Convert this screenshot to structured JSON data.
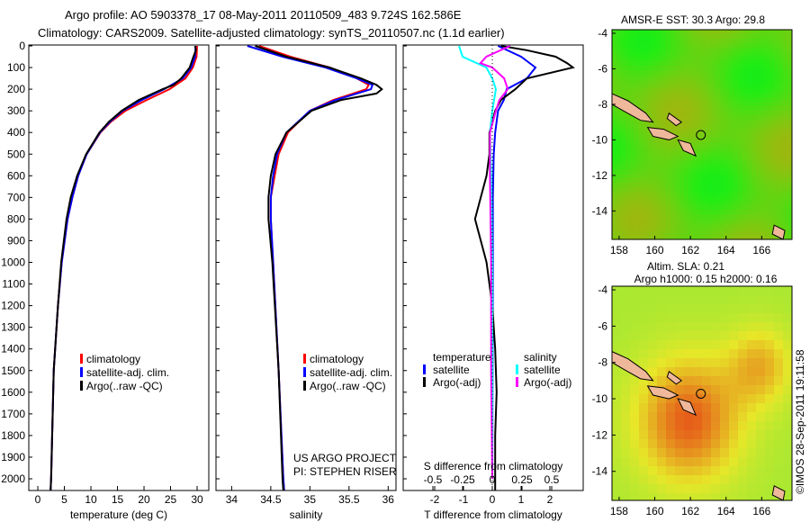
{
  "title": {
    "line1": "Argo profile: AO 5903378_17 08-May-2011 20110509_483 9.724S 162.586E",
    "line2": "Climatology: CARS2009. Satellite-adjusted climatology: synTS_20110507.nc (1.1d earlier)"
  },
  "colors": {
    "climatology": "#ff0000",
    "satellite": "#0000ff",
    "argo": "#000000",
    "sat_salt": "#00ffff",
    "argo_salt": "#ff00ff"
  },
  "depth_ticks": [
    0,
    100,
    200,
    300,
    400,
    500,
    600,
    700,
    800,
    900,
    1000,
    1100,
    1200,
    1300,
    1400,
    1500,
    1600,
    1700,
    1800,
    1900,
    2000
  ],
  "watermark": "©IMOS 28-Sep-2011 19:11:58",
  "chart_data": [
    {
      "type": "line",
      "xlabel": "temperature (deg C)",
      "ylabel": "depth",
      "xticks": [
        0,
        5,
        10,
        15,
        20,
        25,
        30
      ],
      "xlim": [
        -1.7,
        32.2
      ],
      "ylim": [
        2120,
        0
      ],
      "legend": [
        "climatology",
        "satellite-adj. clim.",
        "Argo(..raw -QC)"
      ],
      "legend_placement": "lower-center",
      "series": [
        {
          "name": "climatology",
          "depth": [
            0,
            50,
            100,
            150,
            200,
            250,
            300,
            350,
            400,
            500,
            600,
            700,
            800,
            1000,
            1200,
            1500,
            2000,
            2080
          ],
          "values": [
            30,
            29.9,
            29.2,
            27.8,
            24.8,
            20.5,
            16.5,
            13.8,
            11.8,
            9.2,
            7.6,
            6.5,
            5.6,
            4.5,
            3.8,
            3.0,
            2.5,
            2.4
          ]
        },
        {
          "name": "satellite-adj. clim.",
          "depth": [
            0,
            50,
            100,
            150,
            200,
            250,
            300,
            350,
            400,
            500,
            600,
            700,
            800,
            1000,
            1200,
            1500,
            2000,
            2080
          ],
          "values": [
            29.7,
            29.6,
            28.9,
            27.3,
            23.8,
            19.6,
            16.0,
            13.6,
            11.7,
            9.2,
            7.6,
            6.5,
            5.6,
            4.5,
            3.8,
            3.0,
            2.5,
            2.4
          ]
        },
        {
          "name": "Argo(..raw -QC)",
          "depth": [
            0,
            20,
            50,
            100,
            150,
            180,
            200,
            250,
            300,
            350,
            400,
            500,
            600,
            700,
            800,
            1000,
            1200,
            1500,
            2000,
            2060
          ],
          "values": [
            29.6,
            29.8,
            29.3,
            28.6,
            27.0,
            25.6,
            23.5,
            19.0,
            15.8,
            13.4,
            11.6,
            9.1,
            7.4,
            6.2,
            5.4,
            4.4,
            3.8,
            3.0,
            2.5,
            2.4
          ]
        }
      ]
    },
    {
      "type": "line",
      "xlabel": "salinity",
      "xticks": [
        34,
        34.5,
        35,
        35.5,
        36
      ],
      "xlim": [
        33.8,
        36.1
      ],
      "ylim": [
        2120,
        0
      ],
      "legend": [
        "climatology",
        "satellite-adj. clim.",
        "Argo(..raw -QC)"
      ],
      "annotation": [
        "US ARGO PROJECT",
        "PI: STEPHEN RISER"
      ],
      "series": [
        {
          "name": "climatology",
          "depth": [
            0,
            50,
            100,
            150,
            180,
            200,
            250,
            300,
            400,
            500,
            600,
            700,
            800,
            1000,
            1500,
            2000,
            2080
          ],
          "values": [
            34.35,
            34.75,
            35.25,
            35.6,
            35.75,
            35.72,
            35.3,
            35.0,
            34.72,
            34.6,
            34.55,
            34.5,
            34.5,
            34.53,
            34.6,
            34.66,
            34.67
          ]
        },
        {
          "name": "satellite-adj. clim.",
          "depth": [
            0,
            50,
            100,
            150,
            180,
            200,
            250,
            300,
            400,
            500,
            600,
            700,
            800,
            1000,
            1500,
            2000,
            2080
          ],
          "values": [
            34.2,
            34.65,
            35.2,
            35.6,
            35.8,
            35.78,
            35.33,
            35.0,
            34.7,
            34.58,
            34.53,
            34.5,
            34.5,
            34.53,
            34.6,
            34.66,
            34.67
          ]
        },
        {
          "name": "Argo(..raw -QC)",
          "depth": [
            0,
            50,
            100,
            150,
            180,
            200,
            220,
            250,
            300,
            400,
            500,
            600,
            700,
            800,
            1000,
            1500,
            2000,
            2060
          ],
          "values": [
            34.3,
            34.7,
            35.25,
            35.65,
            35.85,
            35.92,
            35.85,
            35.4,
            35.02,
            34.7,
            34.56,
            34.5,
            34.47,
            34.47,
            34.52,
            34.6,
            34.65,
            34.66
          ]
        }
      ]
    },
    {
      "type": "line",
      "xlabel": "T difference from climatology",
      "xticks": [
        -2,
        -1,
        0,
        1,
        2
      ],
      "xlim": [
        -3.1,
        3.1
      ],
      "x2label": "S difference from climatology",
      "x2ticks": [
        "-0.5",
        "-0.25",
        "0",
        "0.25",
        "0.5"
      ],
      "x2lim": [
        -0.5,
        0.5
      ],
      "legend_temperature_title": "temperature",
      "legend_salinity_title": "salinity",
      "legend": [
        "satellite",
        "Argo(-adj)",
        "satellite",
        "Argo(-adj)"
      ],
      "series": [
        {
          "name": "T satellite",
          "depth": [
            0,
            50,
            100,
            150,
            200,
            250,
            300,
            400,
            500,
            700,
            1000,
            1500,
            2000
          ],
          "values": [
            0.2,
            1.0,
            1.5,
            1.2,
            0.5,
            0.4,
            0.2,
            0.1,
            0.05,
            0.02,
            0.02,
            0.01,
            0.0
          ]
        },
        {
          "name": "T Argo(-adj)",
          "depth": [
            0,
            20,
            50,
            80,
            100,
            150,
            200,
            250,
            300,
            400,
            500,
            600,
            700,
            800,
            900,
            1000,
            1200,
            1400,
            1600,
            1800,
            2000,
            2060
          ],
          "values": [
            0.3,
            1.2,
            2.2,
            2.6,
            2.8,
            1.2,
            0.8,
            0.3,
            0.1,
            -0.1,
            -0.1,
            -0.2,
            -0.4,
            -0.6,
            -0.4,
            -0.2,
            0.0,
            0.1,
            0.15,
            0.1,
            0.1,
            0.1
          ]
        },
        {
          "name": "S satellite",
          "depth": [
            0,
            50,
            100,
            150,
            200,
            300,
            400,
            600,
            1000,
            1500,
            2000
          ],
          "values": [
            -0.28,
            -0.25,
            -0.05,
            0.0,
            0.03,
            0.0,
            -0.02,
            -0.01,
            0.0,
            0.0,
            0.0
          ]
        },
        {
          "name": "S Argo(-adj)",
          "depth": [
            0,
            50,
            80,
            100,
            150,
            200,
            250,
            300,
            400,
            600,
            1000,
            1500,
            2000
          ],
          "values": [
            0.15,
            -0.05,
            -0.1,
            0.0,
            0.1,
            0.13,
            0.06,
            0.03,
            -0.02,
            -0.02,
            -0.01,
            -0.01,
            0.0
          ]
        }
      ]
    }
  ],
  "maps": [
    {
      "title": "AMSR-E SST: 30.3 Argo: 29.8",
      "xticks": [
        158,
        160,
        162,
        164,
        166
      ],
      "yticks": [
        -4,
        -6,
        -8,
        -10,
        -12,
        -14
      ],
      "lonlim": [
        157.6,
        167.7
      ],
      "latlim": [
        -15.6,
        -3.8
      ],
      "marker": [
        162.586,
        -9.724
      ],
      "kind": "sst"
    },
    {
      "title_line1": "Altim. SLA: 0.21",
      "title_line2": "Argo h1000: 0.15 h2000: 0.16",
      "xticks": [
        158,
        160,
        162,
        164,
        166
      ],
      "yticks": [
        -4,
        -6,
        -8,
        -10,
        -12,
        -14
      ],
      "lonlim": [
        157.6,
        167.7
      ],
      "latlim": [
        -15.6,
        -3.8
      ],
      "marker": [
        162.586,
        -9.724
      ],
      "kind": "sla"
    }
  ]
}
